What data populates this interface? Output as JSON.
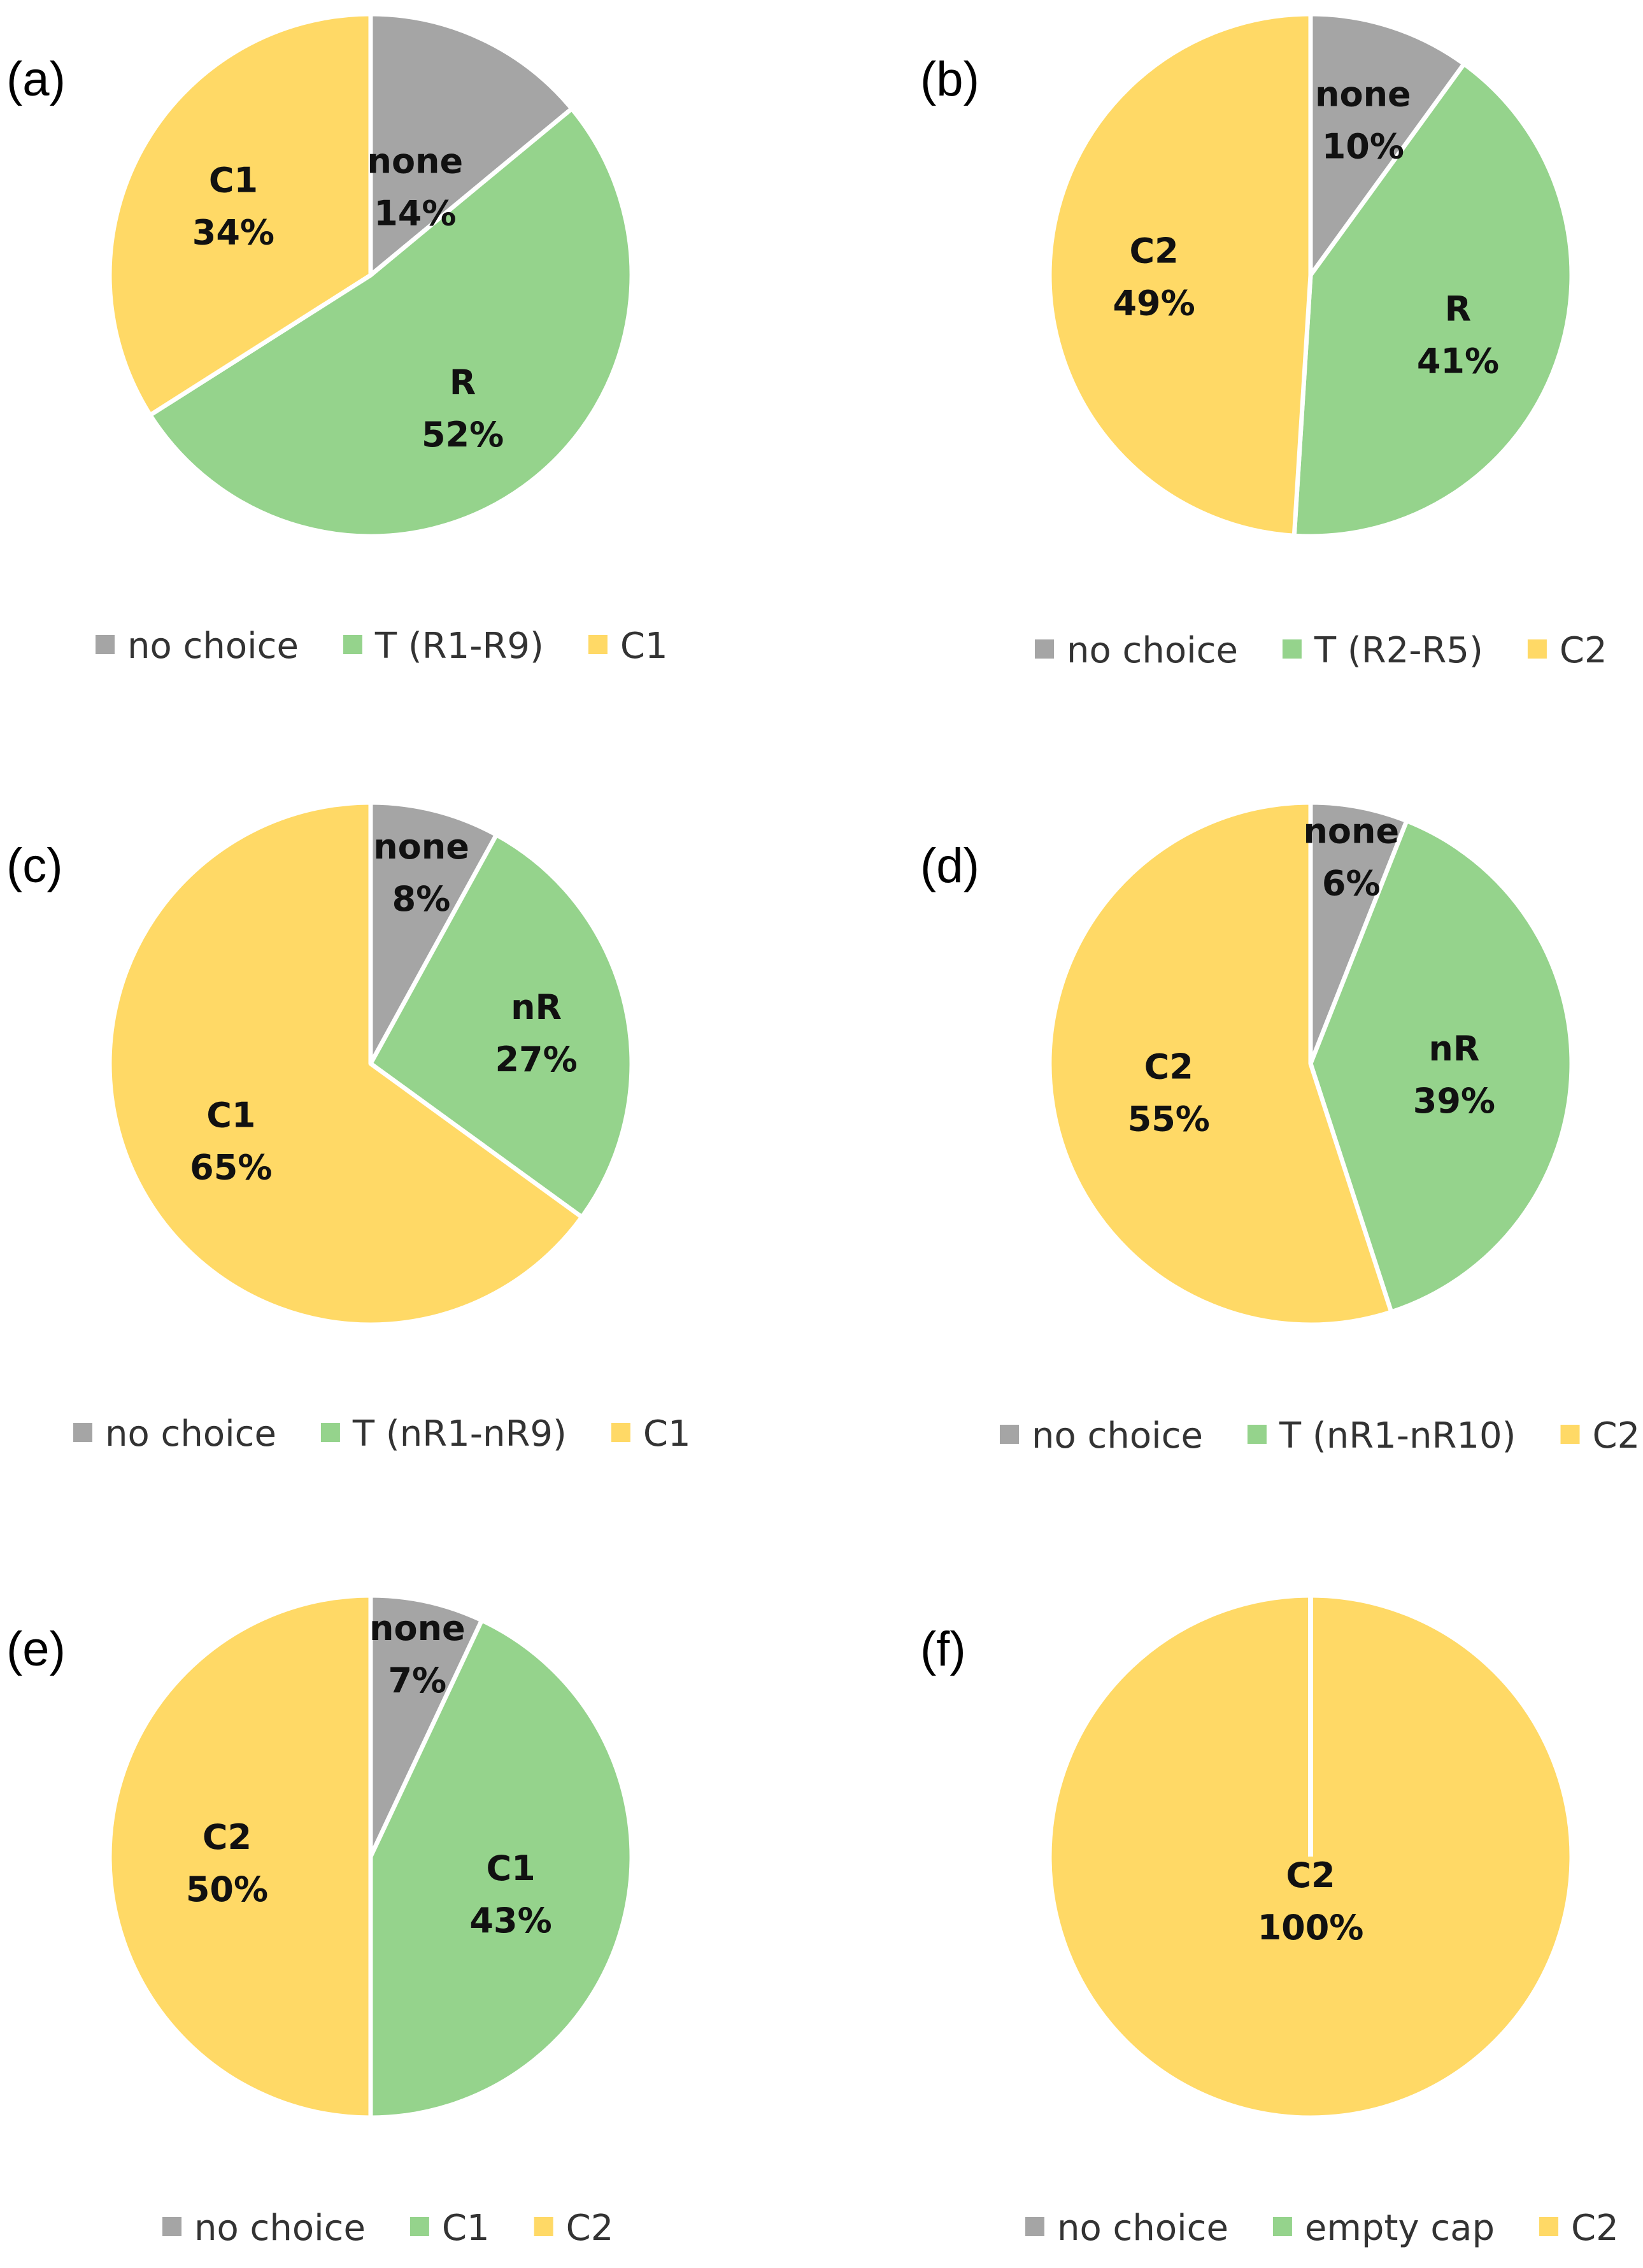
{
  "colors": {
    "none": "#A5A5A5",
    "green": "#95D38C",
    "yellow": "#FFD966"
  },
  "chart_data": [
    {
      "type": "pie",
      "panel": "(a)",
      "slices": [
        {
          "name": "none",
          "value": 14,
          "percent_label": "14%",
          "color": "#A5A5A5"
        },
        {
          "name": "R",
          "value": 52,
          "percent_label": "52%",
          "color": "#95D38C"
        },
        {
          "name": "C1",
          "value": 34,
          "percent_label": "34%",
          "color": "#FFD966"
        }
      ],
      "legend": [
        {
          "label": "no choice",
          "color": "#A5A5A5"
        },
        {
          "label": "T (R1-R9)",
          "color": "#95D38C"
        },
        {
          "label": "C1",
          "color": "#FFD966"
        }
      ]
    },
    {
      "type": "pie",
      "panel": "(b)",
      "slices": [
        {
          "name": "none",
          "value": 10,
          "percent_label": "10%",
          "color": "#A5A5A5"
        },
        {
          "name": "R",
          "value": 41,
          "percent_label": "41%",
          "color": "#95D38C"
        },
        {
          "name": "C2",
          "value": 49,
          "percent_label": "49%",
          "color": "#FFD966"
        }
      ],
      "legend": [
        {
          "label": "no choice",
          "color": "#A5A5A5"
        },
        {
          "label": "T (R2-R5)",
          "color": "#95D38C"
        },
        {
          "label": "C2",
          "color": "#FFD966"
        }
      ]
    },
    {
      "type": "pie",
      "panel": "(c)",
      "slices": [
        {
          "name": "none",
          "value": 8,
          "percent_label": "8%",
          "color": "#A5A5A5"
        },
        {
          "name": "nR",
          "value": 27,
          "percent_label": "27%",
          "color": "#95D38C"
        },
        {
          "name": "C1",
          "value": 65,
          "percent_label": "65%",
          "color": "#FFD966"
        }
      ],
      "legend": [
        {
          "label": "no choice",
          "color": "#A5A5A5"
        },
        {
          "label": "T (nR1-nR9)",
          "color": "#95D38C"
        },
        {
          "label": "C1",
          "color": "#FFD966"
        }
      ]
    },
    {
      "type": "pie",
      "panel": "(d)",
      "slices": [
        {
          "name": "none",
          "value": 6,
          "percent_label": "6%",
          "color": "#A5A5A5"
        },
        {
          "name": "nR",
          "value": 39,
          "percent_label": "39%",
          "color": "#95D38C"
        },
        {
          "name": "C2",
          "value": 55,
          "percent_label": "55%",
          "color": "#FFD966"
        }
      ],
      "legend": [
        {
          "label": "no choice",
          "color": "#A5A5A5"
        },
        {
          "label": "T (nR1-nR10)",
          "color": "#95D38C"
        },
        {
          "label": "C2",
          "color": "#FFD966"
        }
      ]
    },
    {
      "type": "pie",
      "panel": "(e)",
      "slices": [
        {
          "name": "none",
          "value": 7,
          "percent_label": "7%",
          "color": "#A5A5A5"
        },
        {
          "name": "C1",
          "value": 43,
          "percent_label": "43%",
          "color": "#95D38C"
        },
        {
          "name": "C2",
          "value": 50,
          "percent_label": "50%",
          "color": "#FFD966"
        }
      ],
      "legend": [
        {
          "label": "no choice",
          "color": "#A5A5A5"
        },
        {
          "label": "C1",
          "color": "#95D38C"
        },
        {
          "label": "C2",
          "color": "#FFD966"
        }
      ]
    },
    {
      "type": "pie",
      "panel": "(f)",
      "slices": [
        {
          "name": "C2",
          "value": 100,
          "percent_label": "100%",
          "color": "#FFD966"
        }
      ],
      "legend": [
        {
          "label": "no choice",
          "color": "#A5A5A5"
        },
        {
          "label": "empty cap",
          "color": "#95D38C"
        },
        {
          "label": "C2",
          "color": "#FFD966"
        }
      ]
    }
  ]
}
